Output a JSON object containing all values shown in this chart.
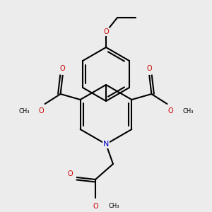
{
  "bg": "#ececec",
  "bc": "#000000",
  "nc": "#0000cc",
  "oc": "#cc0000",
  "lw": 1.5,
  "figsize": [
    3.0,
    3.0
  ],
  "dpi": 100,
  "xlim": [
    0,
    300
  ],
  "ylim": [
    0,
    300
  ]
}
